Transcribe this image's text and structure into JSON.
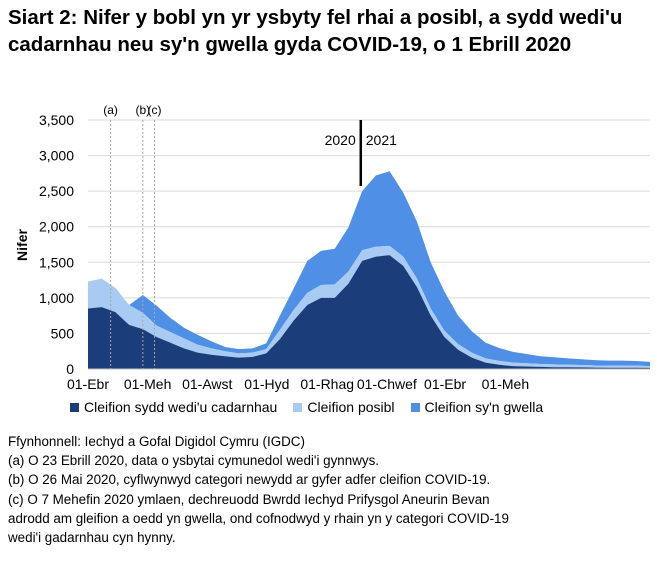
{
  "title": "Siart 2: Nifer y bobl yn yr ysbyty fel rhai a posibl, a sydd wedi'u cadarnhau neu sy'n gwella gyda COVID-19, o 1 Ebrill 2020",
  "colors": {
    "confirmed": "#1b3d7a",
    "suspected": "#a9cbf3",
    "recovering": "#4f8fe6",
    "year_line": "#000000",
    "grid": "#d9d9d9",
    "ref_line": "#a6a6a6"
  },
  "chart_data": {
    "type": "area",
    "stacked": true,
    "ylabel": "Nifer",
    "xlabel": "",
    "ylim": [
      0,
      3500
    ],
    "yticks": [
      0,
      500,
      1000,
      1500,
      2000,
      2500,
      3000,
      3500
    ],
    "ytick_labels": [
      "0",
      "500",
      "1,000",
      "1,500",
      "2,000",
      "2,500",
      "3,000",
      "3,500"
    ],
    "xticks": [
      "01-Ebr",
      "01-Meh",
      "01-Awst",
      "01-Hyd",
      "01-Rhag",
      "01-Chwef",
      "01-Ebr",
      "01-Meh"
    ],
    "grid": "horizontal",
    "legend_position": "bottom",
    "x_weeks": [
      0,
      2,
      4,
      6,
      8,
      10,
      12,
      14,
      16,
      18,
      20,
      22,
      24,
      26,
      28,
      30,
      32,
      34,
      36,
      38,
      40,
      42,
      44,
      46,
      48,
      50,
      52,
      54,
      56,
      58,
      60,
      62,
      64,
      66,
      68,
      70,
      72,
      74,
      76,
      78,
      80,
      82
    ],
    "series": [
      {
        "name": "Cleifion sydd wedi'u cadarnhau",
        "values": [
          850,
          870,
          800,
          620,
          560,
          450,
          370,
          290,
          230,
          200,
          180,
          160,
          170,
          220,
          420,
          680,
          900,
          1000,
          1000,
          1200,
          1520,
          1580,
          1600,
          1450,
          1150,
          750,
          450,
          270,
          160,
          90,
          60,
          40,
          35,
          30,
          25,
          25,
          22,
          20,
          18,
          18,
          17,
          15
        ]
      },
      {
        "name": "Cleifion posibl",
        "values": [
          380,
          400,
          340,
          280,
          230,
          160,
          150,
          140,
          110,
          90,
          70,
          60,
          60,
          60,
          130,
          150,
          170,
          180,
          190,
          170,
          150,
          140,
          130,
          130,
          120,
          100,
          90,
          80,
          70,
          60,
          55,
          50,
          45,
          40,
          40,
          35,
          35,
          30,
          30,
          30,
          30,
          25
        ]
      },
      {
        "name": "Cleifion sy'n gwella",
        "values": [
          0,
          0,
          0,
          0,
          250,
          280,
          200,
          150,
          140,
          100,
          60,
          60,
          60,
          80,
          200,
          300,
          450,
          480,
          500,
          620,
          830,
          1000,
          1050,
          900,
          800,
          650,
          550,
          400,
          300,
          220,
          180,
          150,
          130,
          110,
          100,
          90,
          80,
          75,
          70,
          70,
          65,
          60
        ]
      }
    ],
    "reference_lines": [
      {
        "label": "(a)",
        "x_week": 3.3
      },
      {
        "label": "(b)",
        "x_week": 8.0
      },
      {
        "label": "(c)",
        "x_week": 9.7
      }
    ],
    "year_split": {
      "x_week": 39.8,
      "left_label": "2020",
      "right_label": "2021"
    }
  },
  "legend": [
    {
      "label": "Cleifion sydd wedi'u cadarnhau",
      "color": "#1b3d7a"
    },
    {
      "label": "Cleifion posibl",
      "color": "#a9cbf3"
    },
    {
      "label": "Cleifion sy'n gwella",
      "color": "#4f8fe6"
    }
  ],
  "notes": [
    "Ffynhonnell: Iechyd a Gofal Digidol Cymru (IGDC)",
    "(a) O 23 Ebrill 2020, data o ysbytai cymunedol wedi'i gynnwys.",
    "(b) O 26 Mai 2020, cyflwynwyd categori newydd ar gyfer adfer cleifion COVID-19.",
    "(c) O 7 Mehefin 2020 ymlaen, dechreuodd Bwrdd Iechyd Prifysgol Aneurin Bevan",
    "adrodd am gleifion a oedd yn gwella, ond cofnodwyd y rhain yn y categori COVID-19",
    "wedi'i gadarnhau cyn hynny."
  ]
}
